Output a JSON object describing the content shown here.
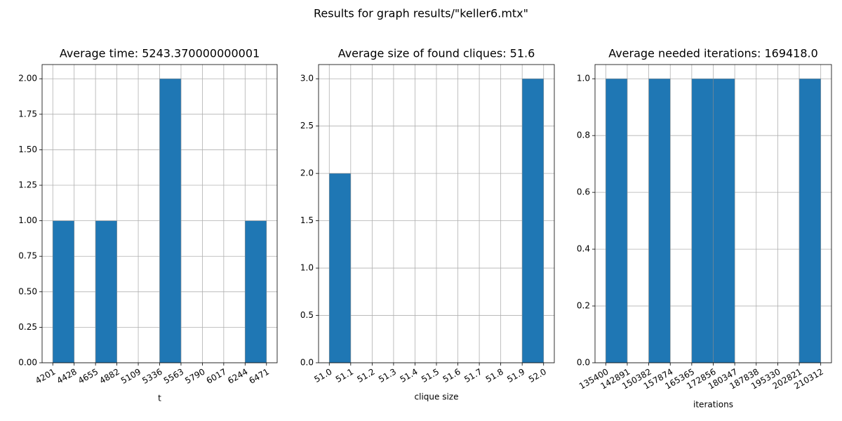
{
  "title": "Results for graph results/\"keller6.mtx\"",
  "chart_data": [
    {
      "type": "histogram",
      "title": "Average time: 5243.370000000001",
      "xlabel": "t",
      "color": "#1f77b4",
      "grid": true,
      "bins": [
        4201,
        4428,
        4655,
        4882,
        5109,
        5336,
        5563,
        5790,
        6017,
        6244,
        6471
      ],
      "counts": [
        1,
        0,
        1,
        0,
        0,
        2,
        0,
        0,
        0,
        1
      ],
      "xlim": [
        4087.5,
        6584.5
      ],
      "xticks": [
        4201,
        4428,
        4655,
        4882,
        5109,
        5336,
        5563,
        5790,
        6017,
        6244,
        6471
      ],
      "ylim": [
        0,
        2.1
      ],
      "yticks": [
        {
          "value": 0,
          "label": "0.00"
        },
        {
          "value": 0.25,
          "label": "0.25"
        },
        {
          "value": 0.5,
          "label": "0.50"
        },
        {
          "value": 0.75,
          "label": "0.75"
        },
        {
          "value": 1,
          "label": "1.00"
        },
        {
          "value": 1.25,
          "label": "1.25"
        },
        {
          "value": 1.5,
          "label": "1.50"
        },
        {
          "value": 1.75,
          "label": "1.75"
        },
        {
          "value": 2,
          "label": "2.00"
        }
      ]
    },
    {
      "type": "histogram",
      "title": "Average size of found cliques: 51.6",
      "xlabel": "clique size",
      "color": "#1f77b4",
      "grid": true,
      "bins": [
        51.0,
        51.1,
        51.2,
        51.3,
        51.4,
        51.5,
        51.6,
        51.7,
        51.8,
        51.9,
        52.0
      ],
      "counts": [
        2,
        0,
        0,
        0,
        0,
        0,
        0,
        0,
        0,
        3
      ],
      "xlim": [
        50.95,
        52.05
      ],
      "xticks": [
        {
          "value": 51,
          "label": "51.0"
        },
        51.1,
        51.2,
        51.3,
        51.4,
        51.5,
        51.6,
        51.7,
        51.8,
        51.9,
        {
          "value": 52,
          "label": "52.0"
        }
      ],
      "ylim": [
        0,
        3.15
      ],
      "yticks": [
        {
          "value": 0,
          "label": "0.0"
        },
        0.5,
        {
          "value": 1,
          "label": "1.0"
        },
        1.5,
        {
          "value": 2,
          "label": "2.0"
        },
        2.5,
        {
          "value": 3,
          "label": "3.0"
        }
      ]
    },
    {
      "type": "histogram",
      "title": "Average needed iterations: 169418.0",
      "xlabel": "iterations",
      "color": "#1f77b4",
      "grid": true,
      "bins": [
        135400,
        142891,
        150382,
        157874,
        165365,
        172856,
        180347,
        187838,
        195330,
        202821,
        210312
      ],
      "counts": [
        1,
        0,
        1,
        0,
        1,
        1,
        0,
        0,
        0,
        1
      ],
      "xlim": [
        131654.4,
        214057.6
      ],
      "xticks": [
        135400,
        142891,
        150382,
        157874,
        165365,
        172856,
        180347,
        187838,
        195330,
        202821,
        210312
      ],
      "ylim": [
        0,
        1.05
      ],
      "yticks": [
        {
          "value": 0,
          "label": "0.0"
        },
        0.2,
        0.4,
        0.6,
        0.8,
        {
          "value": 1,
          "label": "1.0"
        }
      ]
    }
  ]
}
